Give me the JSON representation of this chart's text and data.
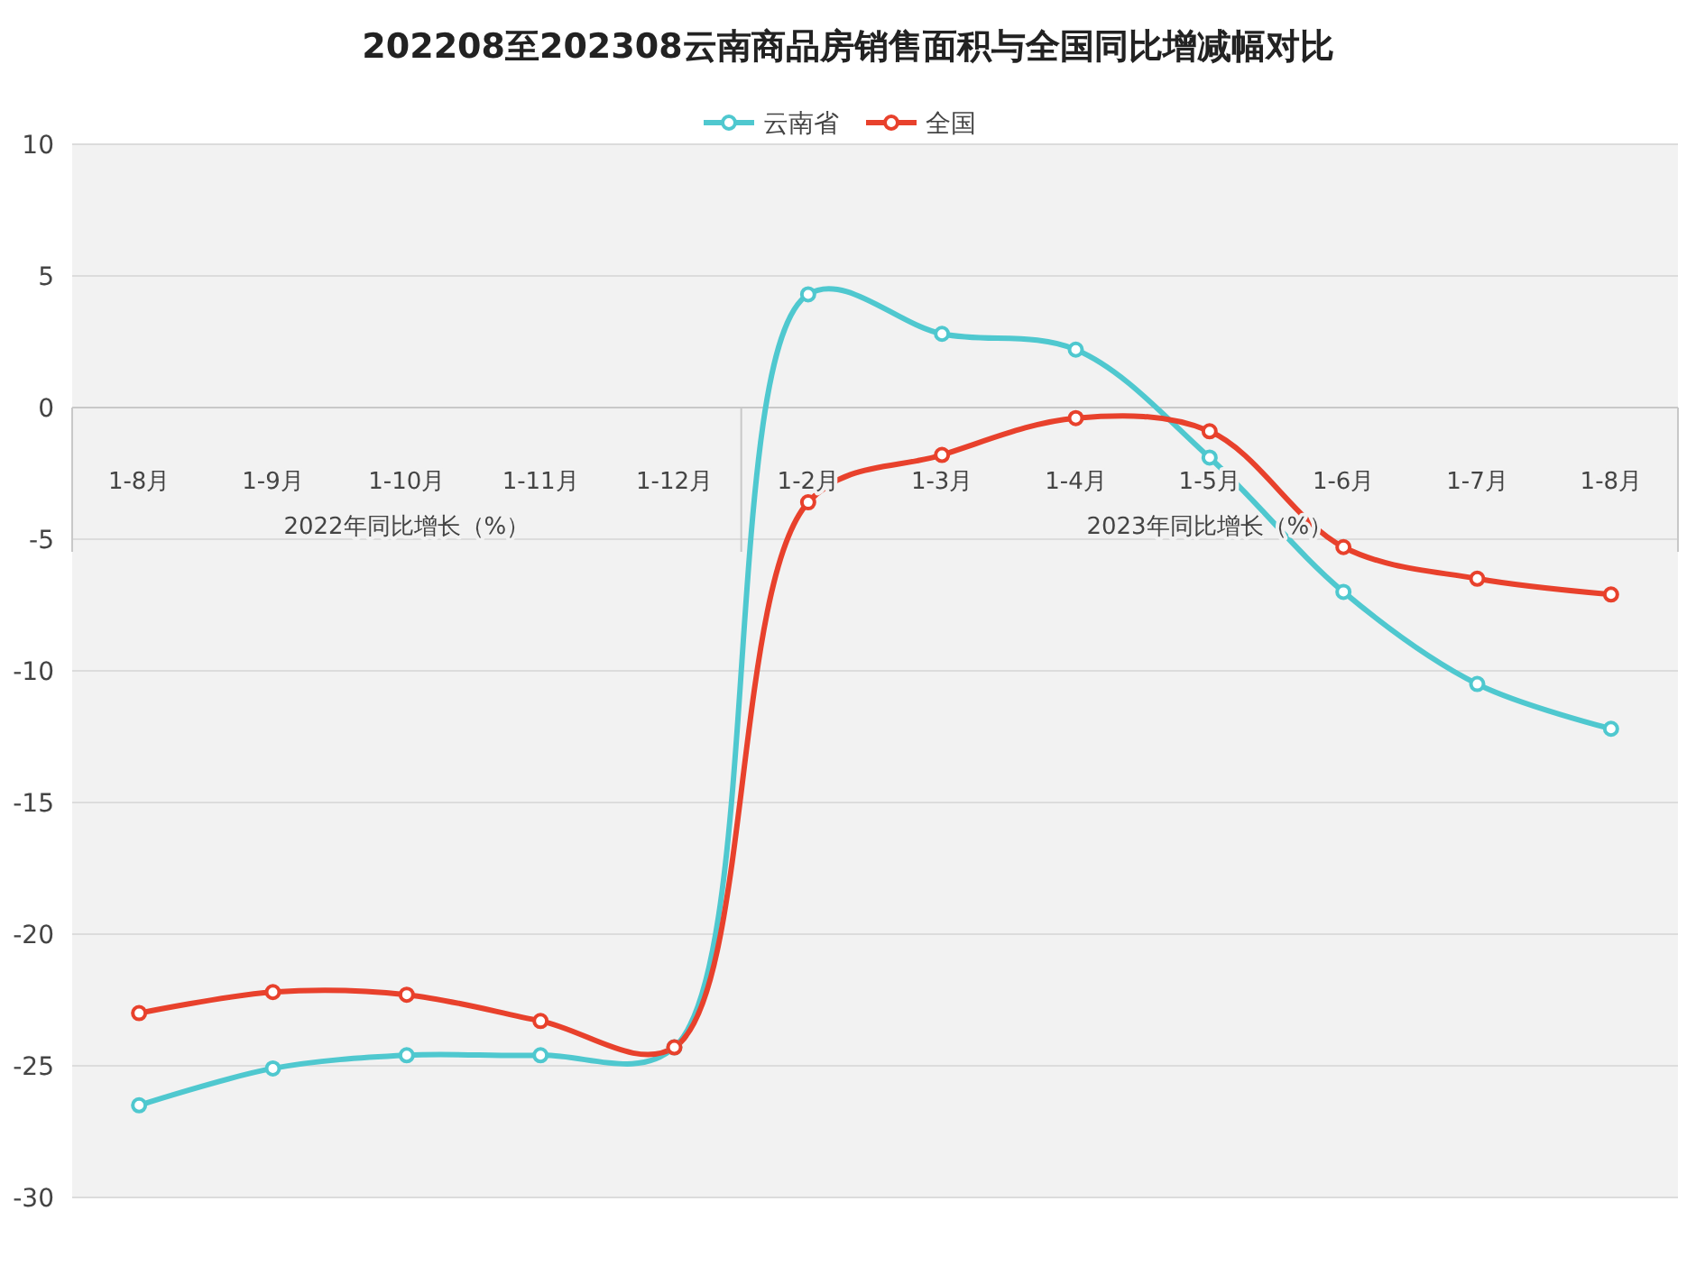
{
  "chart_data": {
    "type": "line",
    "title": "202208至202308云南商品房销售面积与全国同比增减幅对比",
    "categories": [
      "1-8月",
      "1-9月",
      "1-10月",
      "1-11月",
      "1-12月",
      "1-2月",
      "1-3月",
      "1-4月",
      "1-5月",
      "1-6月",
      "1-7月",
      "1-8月"
    ],
    "series": [
      {
        "name": "云南省",
        "color": "#4fc8cf",
        "values": [
          -26.5,
          -25.1,
          -24.6,
          -24.6,
          -24.3,
          4.3,
          2.8,
          2.2,
          -1.9,
          -7.0,
          -10.5,
          -12.2
        ]
      },
      {
        "name": "全国",
        "color": "#e8412c",
        "values": [
          -23.0,
          -22.2,
          -22.3,
          -23.3,
          -24.3,
          -3.6,
          -1.8,
          -0.4,
          -0.9,
          -5.3,
          -6.5,
          -7.1
        ]
      }
    ],
    "annotations": [
      "2022年同比增长（%）",
      "2023年同比增长（%）"
    ],
    "ylim": [
      -30,
      10
    ],
    "yticks": [
      -30,
      -25,
      -20,
      -15,
      -10,
      -5,
      0,
      5,
      10
    ],
    "grid": "y",
    "legend": "top",
    "marker": "circle"
  }
}
